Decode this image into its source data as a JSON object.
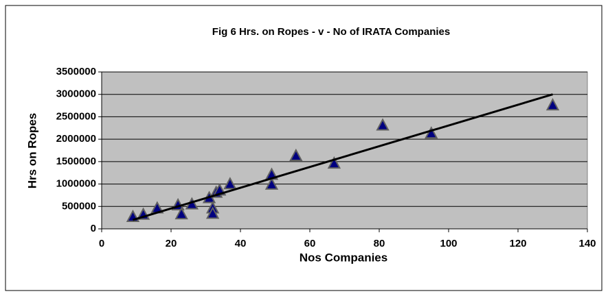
{
  "chart_data": {
    "type": "scatter",
    "title": "Fig 6    Hrs. on Ropes - v - No of IRATA Companies",
    "x_label": "Nos Companies",
    "y_label": "Hrs on Ropes",
    "series": [
      {
        "color": "#000080",
        "marker": "triangle",
        "x": [
          9,
          12,
          16,
          22,
          23,
          26,
          31,
          32,
          32,
          33,
          34,
          37,
          49,
          49,
          56,
          67,
          81,
          95,
          130
        ],
        "values": [
          260000,
          310000,
          450000,
          520000,
          320000,
          540000,
          680000,
          450000,
          330000,
          800000,
          850000,
          990000,
          1200000,
          980000,
          1620000,
          1450000,
          2300000,
          2120000,
          2750000
        ]
      },
      {
        "color": "#000000",
        "marker": "line",
        "x": [
          9,
          130
        ],
        "values": [
          200000,
          3000000
        ]
      }
    ],
    "xlim": [
      0,
      140
    ],
    "xticks": [
      0,
      20,
      40,
      60,
      80,
      100,
      120,
      140
    ],
    "ylim": [
      0,
      3500000
    ],
    "yticks": [
      0,
      500000,
      1000000,
      1500000,
      2000000,
      2500000,
      3000000,
      3500000
    ],
    "grid": true,
    "plot_background": "#c0c0c0"
  }
}
